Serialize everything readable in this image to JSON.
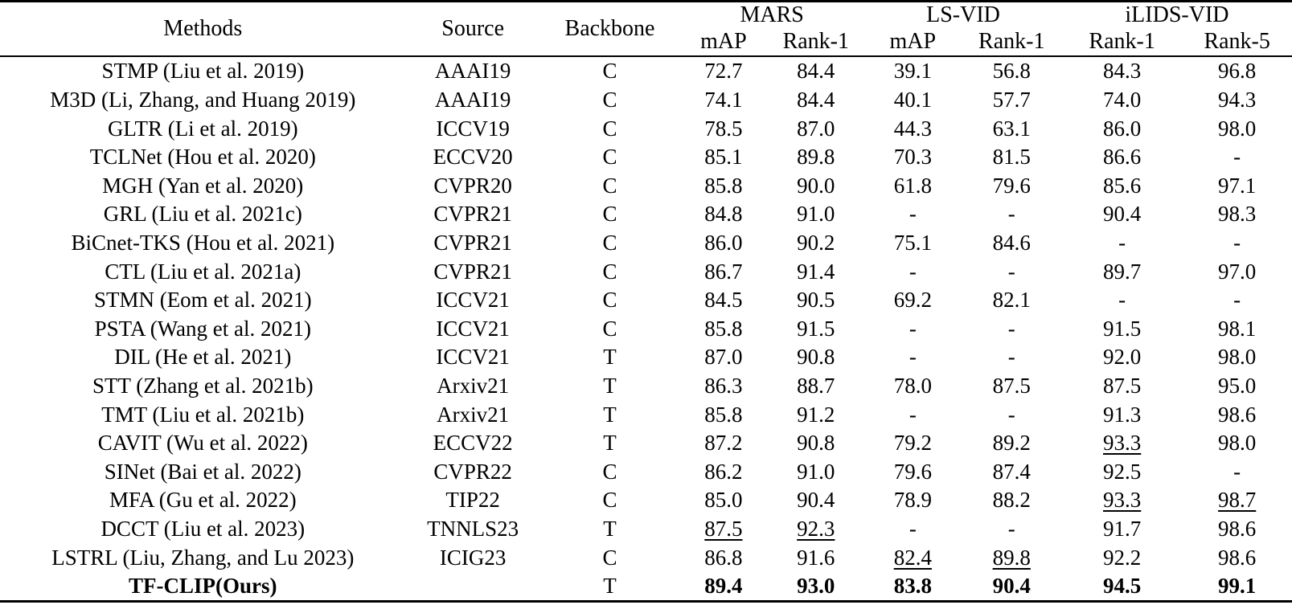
{
  "colors": {
    "background": "#ffffff",
    "text": "#000000",
    "rule": "#000000"
  },
  "table": {
    "header": {
      "methods": "Methods",
      "source": "Source",
      "backbone": "Backbone",
      "groups": [
        {
          "label": "MARS",
          "sub": [
            "mAP",
            "Rank-1"
          ]
        },
        {
          "label": "LS-VID",
          "sub": [
            "mAP",
            "Rank-1"
          ]
        },
        {
          "label": "iLIDS-VID",
          "sub": [
            "Rank-1",
            "Rank-5"
          ]
        }
      ]
    },
    "rows": [
      {
        "method": "STMP (Liu et al. 2019)",
        "source": "AAAI19",
        "backbone": "C",
        "values": [
          "72.7",
          "84.4",
          "39.1",
          "56.8",
          "84.3",
          "96.8"
        ],
        "marks": [
          "",
          "",
          "",
          "",
          "",
          ""
        ],
        "bold": false
      },
      {
        "method": "M3D (Li, Zhang, and Huang 2019)",
        "source": "AAAI19",
        "backbone": "C",
        "values": [
          "74.1",
          "84.4",
          "40.1",
          "57.7",
          "74.0",
          "94.3"
        ],
        "marks": [
          "",
          "",
          "",
          "",
          "",
          ""
        ],
        "bold": false
      },
      {
        "method": "GLTR (Li et al. 2019)",
        "source": "ICCV19",
        "backbone": "C",
        "values": [
          "78.5",
          "87.0",
          "44.3",
          "63.1",
          "86.0",
          "98.0"
        ],
        "marks": [
          "",
          "",
          "",
          "",
          "",
          ""
        ],
        "bold": false
      },
      {
        "method": "TCLNet (Hou et al. 2020)",
        "source": "ECCV20",
        "backbone": "C",
        "values": [
          "85.1",
          "89.8",
          "70.3",
          "81.5",
          "86.6",
          "-"
        ],
        "marks": [
          "",
          "",
          "",
          "",
          "",
          ""
        ],
        "bold": false
      },
      {
        "method": "MGH (Yan et al. 2020)",
        "source": "CVPR20",
        "backbone": "C",
        "values": [
          "85.8",
          "90.0",
          "61.8",
          "79.6",
          "85.6",
          "97.1"
        ],
        "marks": [
          "",
          "",
          "",
          "",
          "",
          ""
        ],
        "bold": false
      },
      {
        "method": "GRL (Liu et al. 2021c)",
        "source": "CVPR21",
        "backbone": "C",
        "values": [
          "84.8",
          "91.0",
          "-",
          "-",
          "90.4",
          "98.3"
        ],
        "marks": [
          "",
          "",
          "",
          "",
          "",
          ""
        ],
        "bold": false
      },
      {
        "method": "BiCnet-TKS (Hou et al. 2021)",
        "source": "CVPR21",
        "backbone": "C",
        "values": [
          "86.0",
          "90.2",
          "75.1",
          "84.6",
          "-",
          "-"
        ],
        "marks": [
          "",
          "",
          "",
          "",
          "",
          ""
        ],
        "bold": false
      },
      {
        "method": "CTL (Liu et al. 2021a)",
        "source": "CVPR21",
        "backbone": "C",
        "values": [
          "86.7",
          "91.4",
          "-",
          "-",
          "89.7",
          "97.0"
        ],
        "marks": [
          "",
          "",
          "",
          "",
          "",
          ""
        ],
        "bold": false
      },
      {
        "method": "STMN (Eom et al. 2021)",
        "source": "ICCV21",
        "backbone": "C",
        "values": [
          "84.5",
          "90.5",
          "69.2",
          "82.1",
          "-",
          "-"
        ],
        "marks": [
          "",
          "",
          "",
          "",
          "",
          ""
        ],
        "bold": false
      },
      {
        "method": "PSTA (Wang et al. 2021)",
        "source": "ICCV21",
        "backbone": "C",
        "values": [
          "85.8",
          "91.5",
          "-",
          "-",
          "91.5",
          "98.1"
        ],
        "marks": [
          "",
          "",
          "",
          "",
          "",
          ""
        ],
        "bold": false
      },
      {
        "method": "DIL (He et al. 2021)",
        "source": "ICCV21",
        "backbone": "T",
        "values": [
          "87.0",
          "90.8",
          "-",
          "-",
          "92.0",
          "98.0"
        ],
        "marks": [
          "",
          "",
          "",
          "",
          "",
          ""
        ],
        "bold": false
      },
      {
        "method": "STT (Zhang et al. 2021b)",
        "source": "Arxiv21",
        "backbone": "T",
        "values": [
          "86.3",
          "88.7",
          "78.0",
          "87.5",
          "87.5",
          "95.0"
        ],
        "marks": [
          "",
          "",
          "",
          "",
          "",
          ""
        ],
        "bold": false
      },
      {
        "method": "TMT (Liu et al. 2021b)",
        "source": "Arxiv21",
        "backbone": "T",
        "values": [
          "85.8",
          "91.2",
          "-",
          "-",
          "91.3",
          "98.6"
        ],
        "marks": [
          "",
          "",
          "",
          "",
          "",
          ""
        ],
        "bold": false
      },
      {
        "method": "CAVIT (Wu et al. 2022)",
        "source": "ECCV22",
        "backbone": "T",
        "values": [
          "87.2",
          "90.8",
          "79.2",
          "89.2",
          "93.3",
          "98.0"
        ],
        "marks": [
          "",
          "",
          "",
          "",
          "u",
          ""
        ],
        "bold": false
      },
      {
        "method": "SINet (Bai et al. 2022)",
        "source": "CVPR22",
        "backbone": "C",
        "values": [
          "86.2",
          "91.0",
          "79.6",
          "87.4",
          "92.5",
          "-"
        ],
        "marks": [
          "",
          "",
          "",
          "",
          "",
          ""
        ],
        "bold": false
      },
      {
        "method": "MFA (Gu et al. 2022)",
        "source": "TIP22",
        "backbone": "C",
        "values": [
          "85.0",
          "90.4",
          "78.9",
          "88.2",
          "93.3",
          "98.7"
        ],
        "marks": [
          "",
          "",
          "",
          "",
          "u",
          "u"
        ],
        "bold": false
      },
      {
        "method": "DCCT (Liu et al. 2023)",
        "source": "TNNLS23",
        "backbone": "T",
        "values": [
          "87.5",
          "92.3",
          "-",
          "-",
          "91.7",
          "98.6"
        ],
        "marks": [
          "u",
          "u",
          "",
          "",
          "",
          ""
        ],
        "bold": false
      },
      {
        "method": "LSTRL (Liu, Zhang, and Lu 2023)",
        "source": "ICIG23",
        "backbone": "C",
        "values": [
          "86.8",
          "91.6",
          "82.4",
          "89.8",
          "92.2",
          "98.6"
        ],
        "marks": [
          "",
          "",
          "u",
          "u",
          "",
          ""
        ],
        "bold": false
      },
      {
        "method": "TF-CLIP(Ours)",
        "source": "",
        "backbone": "T",
        "values": [
          "89.4",
          "93.0",
          "83.8",
          "90.4",
          "94.5",
          "99.1"
        ],
        "marks": [
          "b",
          "b",
          "b",
          "b",
          "b",
          "b"
        ],
        "bold": true
      }
    ]
  }
}
